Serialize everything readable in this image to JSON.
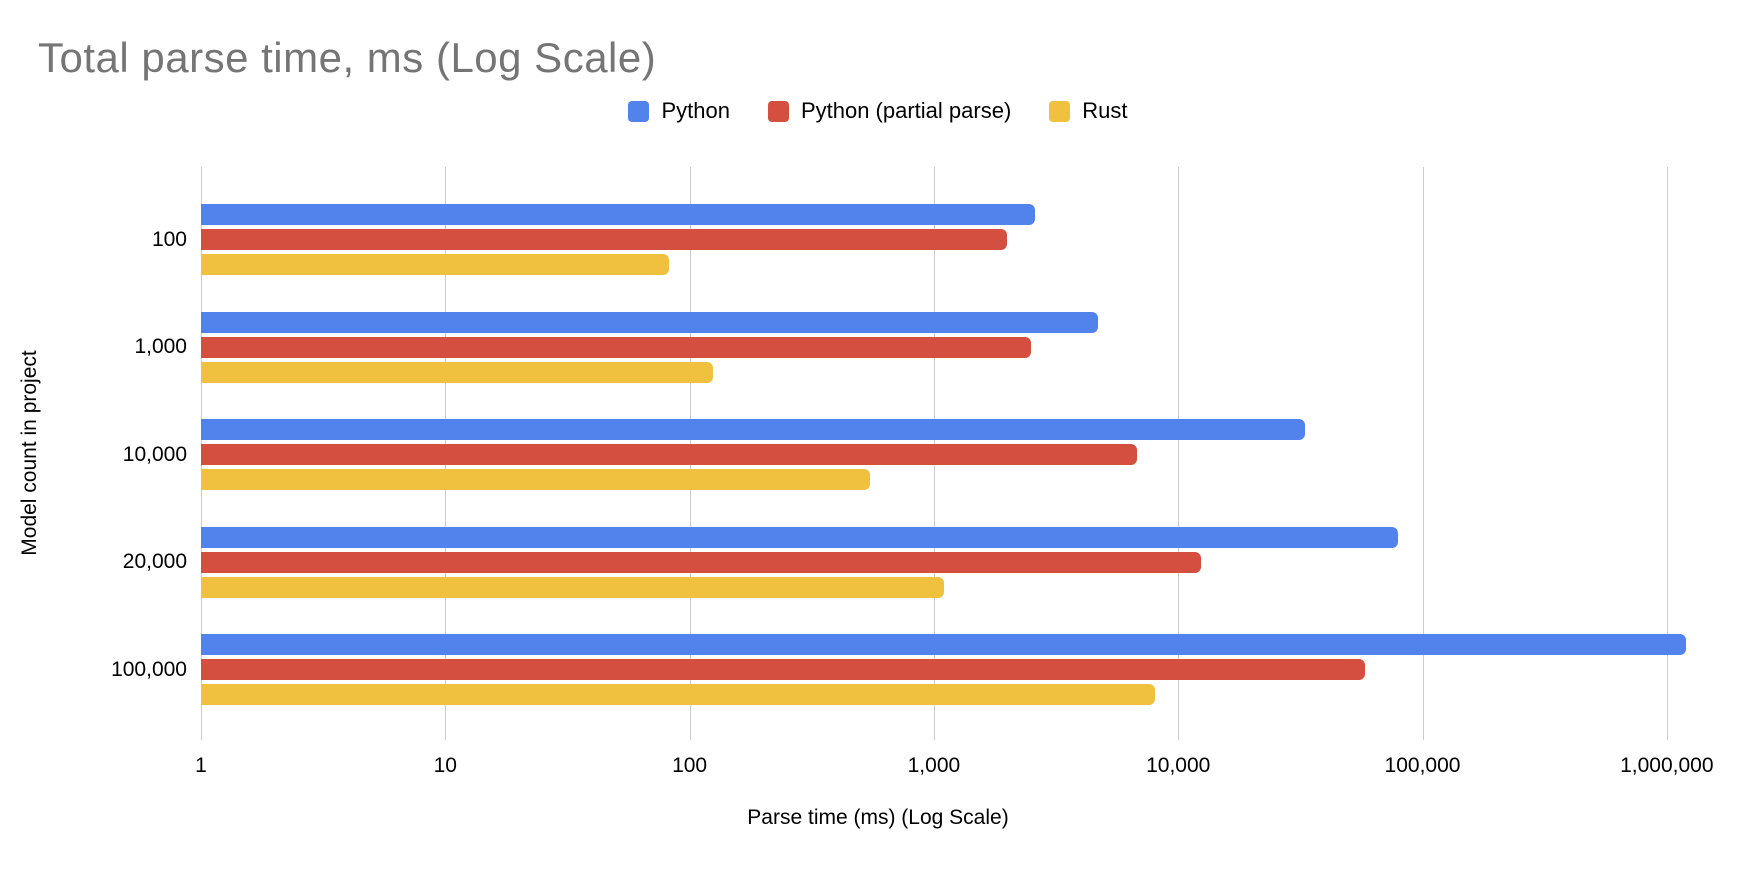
{
  "chart_data": {
    "type": "bar",
    "orientation": "horizontal",
    "log_scale_x": true,
    "title": "Total parse time, ms (Log Scale)",
    "xlabel": "Parse time (ms) (Log Scale)",
    "ylabel": "Model count in project",
    "categories": [
      "100",
      "1,000",
      "10,000",
      "20,000",
      "100,000"
    ],
    "series": [
      {
        "name": "Python",
        "color": "#5282EB",
        "values": [
          2600,
          4700,
          33000,
          79000,
          1200000
        ]
      },
      {
        "name": "Python (partial parse)",
        "color": "#D54F40",
        "values": [
          2000,
          2500,
          6800,
          12400,
          58000
        ]
      },
      {
        "name": "Rust",
        "color": "#F0C13E",
        "values": [
          82,
          125,
          550,
          1100,
          8000
        ]
      }
    ],
    "x_ticks": [
      "1",
      "10",
      "100",
      "1,000",
      "10,000",
      "100,000",
      "1,000,000"
    ],
    "x_min": 1,
    "x_max": 1000000,
    "plot_extent_decades": 6.32,
    "grid": true,
    "legend_position": "top",
    "colors": {
      "title_text": "#757575",
      "axis_text": "#000000",
      "gridline": "#cccccc",
      "background": "#ffffff"
    }
  }
}
